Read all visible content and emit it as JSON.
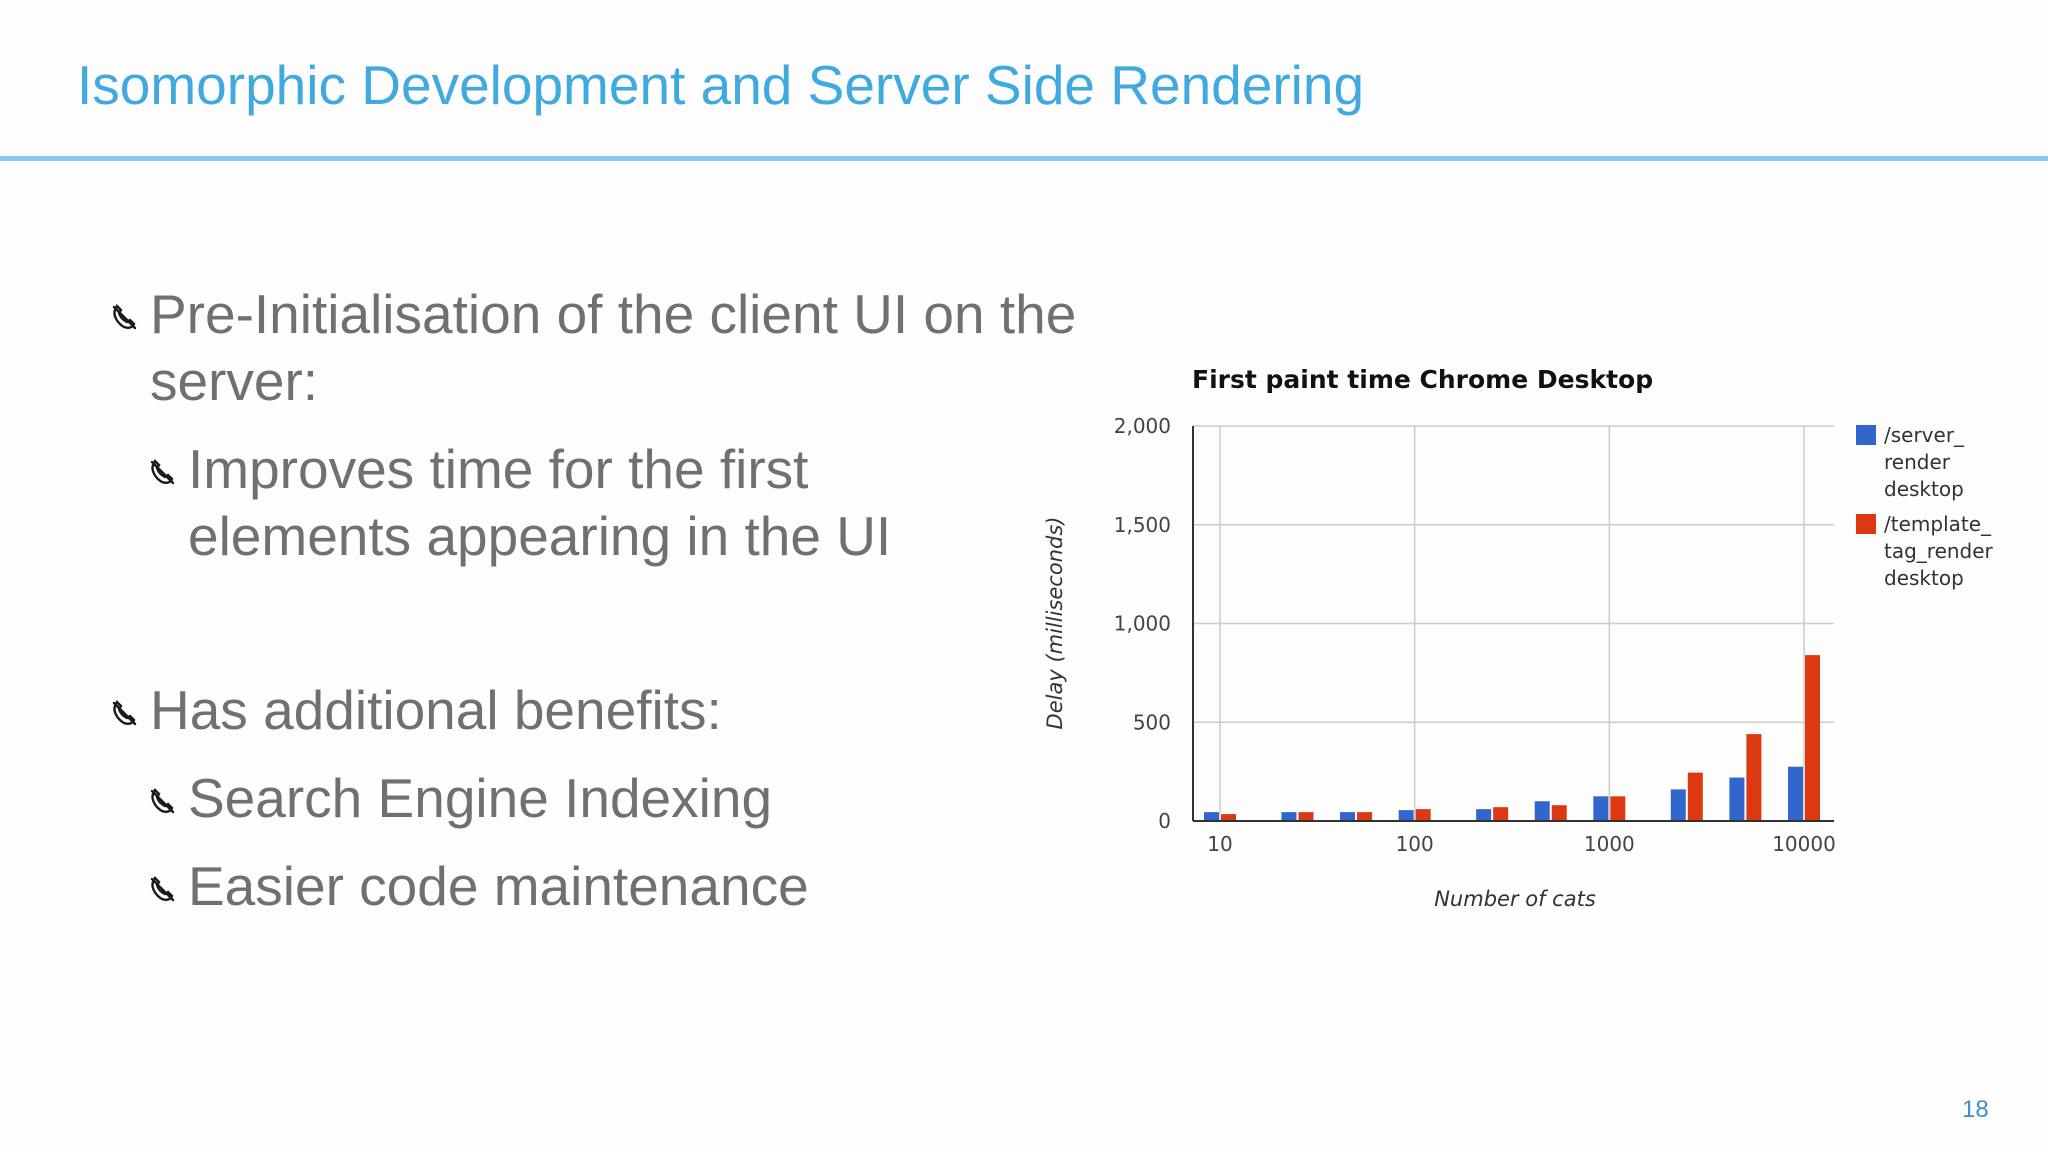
{
  "slide": {
    "title": "Isomorphic Development and Server Side Rendering",
    "page_number": "18",
    "bullet_icon": "rotary-phone-icon",
    "colors": {
      "title": "#3fa9e0",
      "rule": "#8ec4ef",
      "body_text": "#707070"
    },
    "bullets": [
      {
        "level": 1,
        "text": "Pre-Initialisation of the client UI on the server:"
      },
      {
        "level": 2,
        "text": "Improves time for the first elements appearing in the UI"
      },
      {
        "level": 1,
        "text": "Has additional benefits:"
      },
      {
        "level": 2,
        "text": "Search Engine Indexing"
      },
      {
        "level": 2,
        "text": "Easier code maintenance"
      }
    ]
  },
  "chart_data": {
    "type": "bar",
    "title": "First paint time Chrome Desktop",
    "xlabel": "Number of cats",
    "ylabel": "Delay (milliseconds)",
    "x_scale": "log",
    "x_ticks": [
      "10",
      "100",
      "1000",
      "10000"
    ],
    "y_ticks": [
      "2,000",
      "1,500",
      "1,000",
      "500",
      "0"
    ],
    "ylim": [
      0,
      2000
    ],
    "grid": true,
    "legend_position": "right",
    "x": [
      10,
      25,
      50,
      100,
      250,
      500,
      1000,
      2500,
      5000,
      10000
    ],
    "series": [
      {
        "name": "/server_ render desktop",
        "legend_lines": [
          "/server_",
          "render",
          "desktop"
        ],
        "color": "#3366cc",
        "values": [
          45,
          45,
          45,
          55,
          60,
          100,
          125,
          160,
          220,
          275
        ]
      },
      {
        "name": "/template_ tag_render desktop",
        "legend_lines": [
          "/template_",
          "tag_render",
          "desktop"
        ],
        "color": "#dc3912",
        "values": [
          35,
          45,
          45,
          60,
          70,
          80,
          125,
          245,
          440,
          840
        ]
      }
    ]
  }
}
